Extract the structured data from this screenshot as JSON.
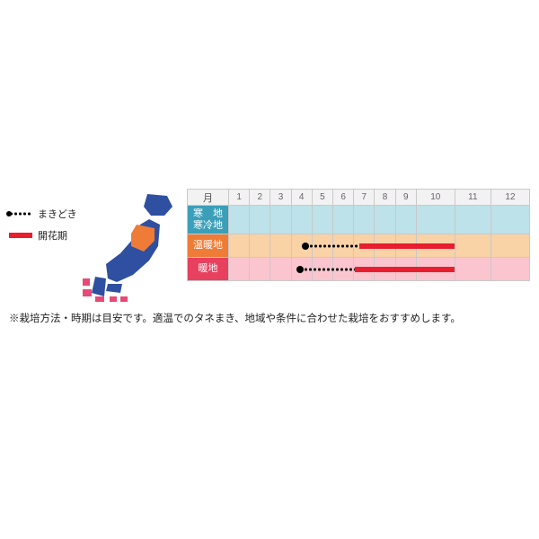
{
  "legend": {
    "sow": {
      "label": "まきどき",
      "style": "dotted",
      "color": "#000000"
    },
    "flower": {
      "label": "開花期",
      "style": "solid",
      "color": "#e81e2f"
    }
  },
  "map": {
    "main_color": "#2f4fa0",
    "accent_color": "#ee7c36",
    "pink_color": "#e84a76"
  },
  "calendar": {
    "month_label": "月",
    "months": [
      "1",
      "2",
      "3",
      "4",
      "5",
      "6",
      "7",
      "8",
      "9",
      "10",
      "11",
      "12"
    ],
    "header_bg": "#f2f2f2",
    "grid_color": "#c9c9c9",
    "rows": [
      {
        "label": "寒　地\n寒冷地",
        "label_bg": "#3b9fba",
        "row_bg": "#bde2e9",
        "segments": []
      },
      {
        "label": "温暖地",
        "label_bg": "#ee7c36",
        "row_bg": "#f9d2a6",
        "segments": [
          {
            "type": "dotted",
            "start": 4.0,
            "end": 6.2,
            "color": "#000000"
          },
          {
            "type": "solid",
            "start": 6.2,
            "end": 10.0,
            "color": "#e81e2f"
          }
        ]
      },
      {
        "label": "暖地",
        "label_bg": "#e8415f",
        "row_bg": "#fac5cf",
        "segments": [
          {
            "type": "dotted",
            "start": 3.8,
            "end": 6.0,
            "color": "#000000"
          },
          {
            "type": "solid",
            "start": 6.0,
            "end": 10.0,
            "color": "#e81e2f"
          }
        ]
      }
    ]
  },
  "note": "※栽培方法・時期は目安です。適温でのタネまき、地域や条件に合わせた栽培をおすすめします。"
}
